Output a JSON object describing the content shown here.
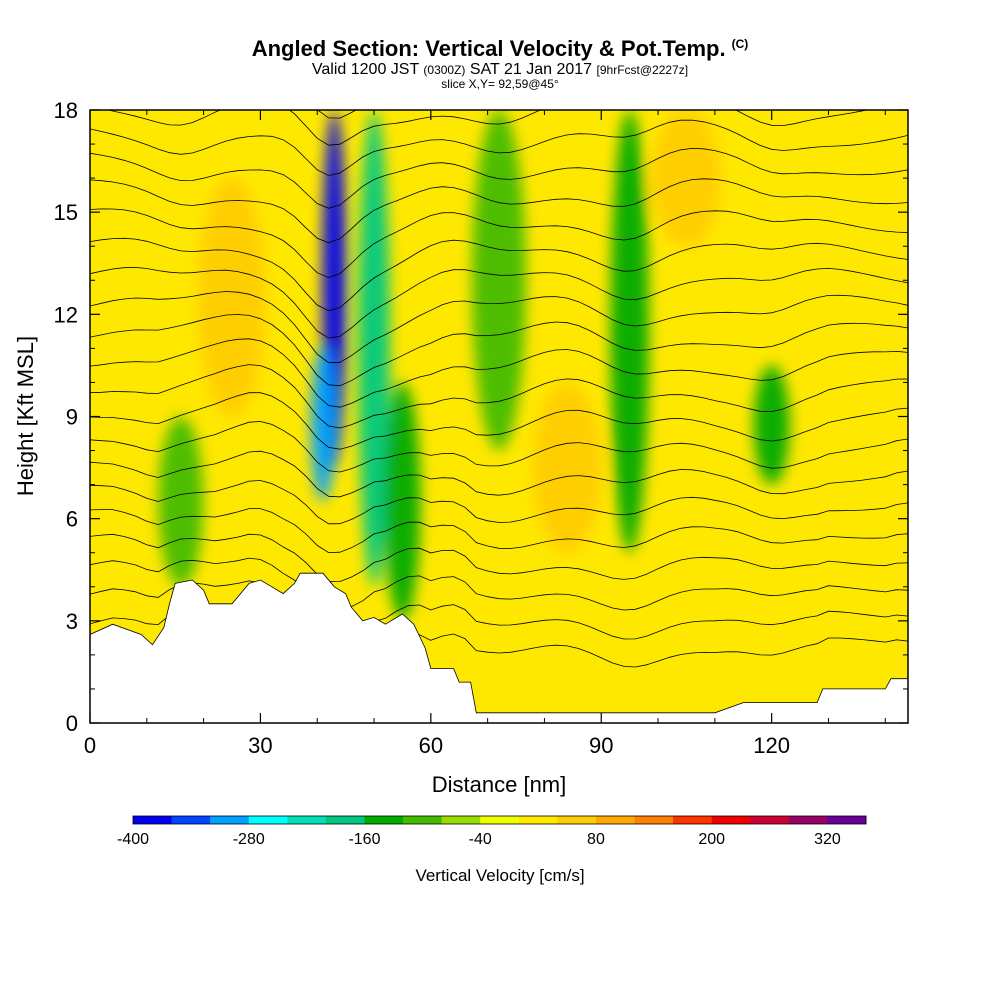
{
  "header": {
    "title_main": "Angled Section: Vertical Velocity & Pot.Temp.",
    "title_mark": "(C)",
    "valid_prefix": "Valid 1200 JST",
    "valid_zulu": "(0300Z)",
    "valid_date": "SAT 21 Jan 2017",
    "forecast": "[9hrFcst@2227z]",
    "slice": "slice X,Y= 92,59@45°"
  },
  "chart_data": {
    "type": "heatmap",
    "xlabel": "Distance [nm]",
    "ylabel": "Height [Kft MSL]",
    "xlim": [
      0,
      144
    ],
    "ylim": [
      0,
      18
    ],
    "x_ticks": [
      0,
      30,
      60,
      90,
      120
    ],
    "y_ticks": [
      0,
      3,
      6,
      9,
      12,
      15,
      18
    ],
    "grid": false,
    "variable": "Vertical Velocity",
    "overlay": "Potential Temperature contours",
    "colorbar": {
      "label": "Vertical Velocity [cm/s]",
      "position": "bottom",
      "tick_labels": [
        "-400",
        "-280",
        "-160",
        "-40",
        "80",
        "200",
        "320"
      ],
      "tick_values": [
        -400,
        -280,
        -160,
        -40,
        80,
        200,
        320
      ],
      "levels": [
        -400,
        -360,
        -320,
        -280,
        -240,
        -200,
        -160,
        -120,
        -80,
        -40,
        0,
        40,
        80,
        120,
        160,
        200,
        240,
        280,
        320,
        360
      ],
      "colors": [
        "#0000ee",
        "#0044ff",
        "#00a0ff",
        "#00ffff",
        "#00e0b8",
        "#00c880",
        "#00aa00",
        "#44bb00",
        "#99dd00",
        "#eeff00",
        "#ffe800",
        "#ffcc00",
        "#ffa800",
        "#ff7f00",
        "#ff3300",
        "#ee0000",
        "#cc0033",
        "#990066",
        "#660099"
      ]
    },
    "velocity_features": [
      {
        "x": 43,
        "zmin": 7.5,
        "zmax": 18,
        "value": -380,
        "kind": "downdraft"
      },
      {
        "x": 41,
        "zmin": 6.5,
        "zmax": 11,
        "value": -290,
        "kind": "downdraft"
      },
      {
        "x": 50,
        "zmin": 4,
        "zmax": 18,
        "value": -170,
        "kind": "downdraft"
      },
      {
        "x": 55,
        "zmin": 3,
        "zmax": 10,
        "value": -150,
        "kind": "downdraft"
      },
      {
        "x": 95,
        "zmin": 5,
        "zmax": 18,
        "value": -140,
        "kind": "downdraft"
      },
      {
        "x": 120,
        "zmin": 7,
        "zmax": 10.5,
        "value": -150,
        "kind": "downdraft"
      },
      {
        "x": 16,
        "zmin": 4,
        "zmax": 9,
        "value": -120,
        "kind": "downdraft"
      },
      {
        "x": 72,
        "zmin": 8,
        "zmax": 18,
        "value": -100,
        "kind": "downdraft"
      },
      {
        "x": 84,
        "zmin": 5,
        "zmax": 10,
        "value": 70,
        "kind": "updraft"
      },
      {
        "x": 25,
        "zmin": 9,
        "zmax": 16,
        "value": 50,
        "kind": "updraft"
      },
      {
        "x": 105,
        "zmin": 14,
        "zmax": 18,
        "value": 40,
        "kind": "updraft"
      }
    ],
    "terrain_kft": [
      [
        0,
        2.6
      ],
      [
        4,
        2.9
      ],
      [
        9,
        2.6
      ],
      [
        11,
        2.3
      ],
      [
        13,
        2.8
      ],
      [
        14,
        3.5
      ],
      [
        15,
        4.1
      ],
      [
        18,
        4.2
      ],
      [
        20,
        3.9
      ],
      [
        21,
        3.5
      ],
      [
        25,
        3.5
      ],
      [
        26,
        3.7
      ],
      [
        28,
        4.1
      ],
      [
        30,
        4.2
      ],
      [
        32,
        4.0
      ],
      [
        34,
        3.8
      ],
      [
        36,
        4.1
      ],
      [
        37,
        4.4
      ],
      [
        41,
        4.4
      ],
      [
        43,
        4.0
      ],
      [
        45,
        3.8
      ],
      [
        46,
        3.4
      ],
      [
        48,
        3.0
      ],
      [
        50,
        3.1
      ],
      [
        52,
        2.9
      ],
      [
        55,
        3.2
      ],
      [
        57,
        2.9
      ],
      [
        59,
        2.2
      ],
      [
        60,
        1.6
      ],
      [
        64,
        1.6
      ],
      [
        65,
        1.2
      ],
      [
        67,
        1.2
      ],
      [
        68,
        0.3
      ],
      [
        75,
        0.3
      ],
      [
        90,
        0.3
      ],
      [
        100,
        0.3
      ],
      [
        106,
        0.3
      ],
      [
        110,
        0.3
      ],
      [
        115,
        0.6
      ],
      [
        118,
        0.6
      ],
      [
        128,
        0.6
      ],
      [
        129,
        1.0
      ],
      [
        140,
        1.0
      ],
      [
        141,
        1.3
      ],
      [
        144,
        1.3
      ]
    ]
  }
}
